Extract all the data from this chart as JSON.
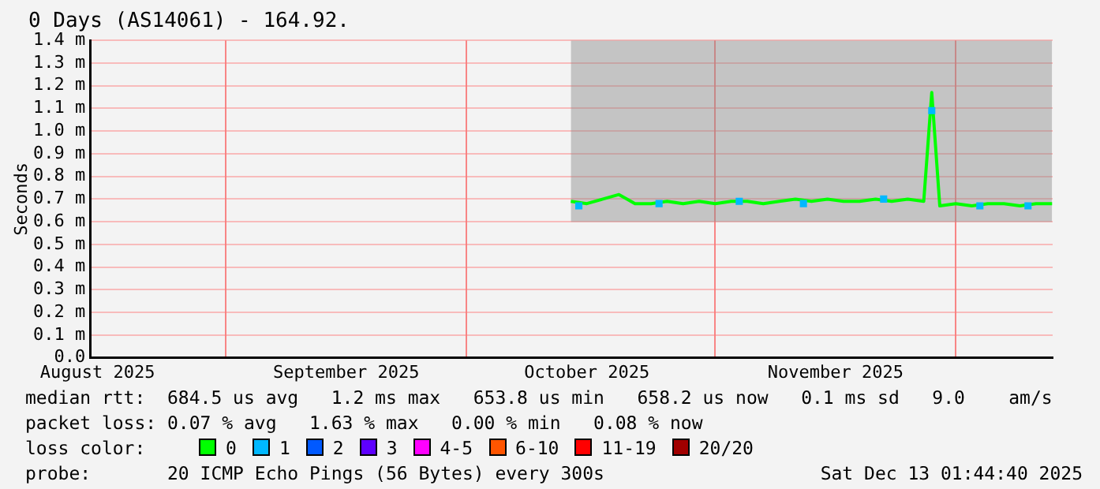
{
  "chart_data": {
    "type": "line",
    "title": "0 Days (AS14061) - 164.92.",
    "ylabel": "Seconds",
    "legend_title": "loss color:",
    "xlim": [
      "2025-08-15T01:44",
      "2025-12-13T01:44"
    ],
    "xticks": [
      {
        "value": "2025-08-16",
        "label": "August 2025"
      },
      {
        "value": "2025-09-01",
        "label": null
      },
      {
        "value": "2025-09-16",
        "label": "September 2025"
      },
      {
        "value": "2025-10-01",
        "label": null
      },
      {
        "value": "2025-10-16",
        "label": "October 2025"
      },
      {
        "value": "2025-11-01",
        "label": null
      },
      {
        "value": "2025-11-16",
        "label": "November 2025"
      },
      {
        "value": "2025-12-01",
        "label": null
      }
    ],
    "ylim": [
      0,
      1.4
    ],
    "yticks": [
      {
        "value": 0,
        "label": "0.0"
      },
      {
        "value": 0.1,
        "label": "0.1 m"
      },
      {
        "value": 0.2,
        "label": "0.2 m"
      },
      {
        "value": 0.3,
        "label": "0.3 m"
      },
      {
        "value": 0.4,
        "label": "0.4 m"
      },
      {
        "value": 0.5,
        "label": "0.5 m"
      },
      {
        "value": 0.6,
        "label": "0.6 m"
      },
      {
        "value": 0.7,
        "label": "0.7 m"
      },
      {
        "value": 0.8,
        "label": "0.8 m"
      },
      {
        "value": 0.9,
        "label": "0.9 m"
      },
      {
        "value": 1.0,
        "label": "1.0 m"
      },
      {
        "value": 1.1,
        "label": "1.1 m"
      },
      {
        "value": 1.2,
        "label": "1.2 m"
      },
      {
        "value": 1.3,
        "label": "1.3 m"
      },
      {
        "value": 1.4,
        "label": "1.4 m"
      }
    ],
    "grid": true,
    "legend": "bottom",
    "line_style": "solid",
    "x": [
      "2025-10-14",
      "2025-10-16",
      "2025-10-18",
      "2025-10-20",
      "2025-10-22",
      "2025-10-24",
      "2025-10-26",
      "2025-10-28",
      "2025-10-30",
      "2025-11-01",
      "2025-11-03",
      "2025-11-05",
      "2025-11-07",
      "2025-11-09",
      "2025-11-11",
      "2025-11-13",
      "2025-11-15",
      "2025-11-17",
      "2025-11-19",
      "2025-11-21",
      "2025-11-23",
      "2025-11-25",
      "2025-11-27",
      "2025-11-28",
      "2025-11-29",
      "2025-12-01",
      "2025-12-03",
      "2025-12-05",
      "2025-12-07",
      "2025-12-09",
      "2025-12-11",
      "2025-12-13"
    ],
    "series": [
      {
        "name": "0",
        "color": "#00ff00",
        "values": [
          0.69,
          0.68,
          0.7,
          0.72,
          0.68,
          0.68,
          0.69,
          0.68,
          0.69,
          0.68,
          0.69,
          0.69,
          0.68,
          0.69,
          0.7,
          0.69,
          0.7,
          0.69,
          0.69,
          0.7,
          0.69,
          0.7,
          0.69,
          1.17,
          0.67,
          0.68,
          0.67,
          0.68,
          0.68,
          0.67,
          0.68,
          0.68
        ],
        "lower": [
          0.6,
          0.6,
          0.6,
          0.6,
          0.6,
          0.6,
          0.6,
          0.6,
          0.6,
          0.6,
          0.6,
          0.6,
          0.6,
          0.6,
          0.6,
          0.6,
          0.6,
          0.6,
          0.6,
          0.6,
          0.6,
          0.6,
          0.6,
          0.6,
          0.6,
          0.6,
          0.6,
          0.6,
          0.6,
          0.6,
          0.6,
          0.6
        ],
        "upper": [
          1.4,
          1.4,
          1.4,
          1.4,
          1.4,
          1.4,
          1.4,
          1.4,
          1.4,
          1.4,
          1.4,
          1.4,
          1.4,
          1.4,
          1.4,
          1.4,
          1.4,
          1.4,
          1.4,
          1.4,
          1.4,
          1.4,
          1.4,
          1.4,
          1.4,
          1.4,
          1.4,
          1.4,
          1.4,
          1.4,
          1.4,
          1.4
        ]
      },
      {
        "name": "1",
        "color": "#00b8ff",
        "type": "scatter",
        "marker": "square",
        "x": [
          "2025-10-15",
          "2025-10-25",
          "2025-11-04",
          "2025-11-12",
          "2025-11-22",
          "2025-11-28",
          "2025-12-04",
          "2025-12-10"
        ],
        "values": [
          0.67,
          0.68,
          0.69,
          0.68,
          0.7,
          1.09,
          0.67,
          0.67
        ]
      },
      {
        "name": "2",
        "color": "#0059ff",
        "values": [
          null,
          null,
          null,
          null,
          null,
          null,
          null,
          null,
          null,
          null,
          null,
          null,
          null,
          null,
          null,
          null,
          null,
          null,
          null,
          null,
          null,
          null,
          null,
          null,
          null,
          null,
          null,
          null,
          null,
          null,
          null,
          null
        ]
      },
      {
        "name": "3",
        "color": "#5e00ff",
        "values": [
          null,
          null,
          null,
          null,
          null,
          null,
          null,
          null,
          null,
          null,
          null,
          null,
          null,
          null,
          null,
          null,
          null,
          null,
          null,
          null,
          null,
          null,
          null,
          null,
          null,
          null,
          null,
          null,
          null,
          null,
          null,
          null
        ]
      },
      {
        "name": "4-5",
        "color": "#ff00ff",
        "values": [
          null,
          null,
          null,
          null,
          null,
          null,
          null,
          null,
          null,
          null,
          null,
          null,
          null,
          null,
          null,
          null,
          null,
          null,
          null,
          null,
          null,
          null,
          null,
          null,
          null,
          null,
          null,
          null,
          null,
          null,
          null,
          null
        ]
      },
      {
        "name": "6-10",
        "color": "#ff5500",
        "values": [
          null,
          null,
          null,
          null,
          null,
          null,
          null,
          null,
          null,
          null,
          null,
          null,
          null,
          null,
          null,
          null,
          null,
          null,
          null,
          null,
          null,
          null,
          null,
          null,
          null,
          null,
          null,
          null,
          null,
          null,
          null,
          null
        ]
      },
      {
        "name": "11-19",
        "color": "#ff0000",
        "values": [
          null,
          null,
          null,
          null,
          null,
          null,
          null,
          null,
          null,
          null,
          null,
          null,
          null,
          null,
          null,
          null,
          null,
          null,
          null,
          null,
          null,
          null,
          null,
          null,
          null,
          null,
          null,
          null,
          null,
          null,
          null,
          null
        ]
      },
      {
        "name": "20/20",
        "color": "#a10000",
        "values": [
          null,
          null,
          null,
          null,
          null,
          null,
          null,
          null,
          null,
          null,
          null,
          null,
          null,
          null,
          null,
          null,
          null,
          null,
          null,
          null,
          null,
          null,
          null,
          null,
          null,
          null,
          null,
          null,
          null,
          null,
          null,
          null
        ]
      }
    ],
    "annotations": [
      "median rtt:  684.5 us avg   1.2 ms max   653.8 us min   658.2 us now   0.1 ms sd   9.0    am/s",
      "packet loss: 0.07 % avg   1.63 % max   0.00 % min   0.08 % now",
      "probe:       20 ICMP Echo Pings (56 Bytes) every 300s",
      "Sat Dec 13 01:44:40 2025"
    ]
  }
}
